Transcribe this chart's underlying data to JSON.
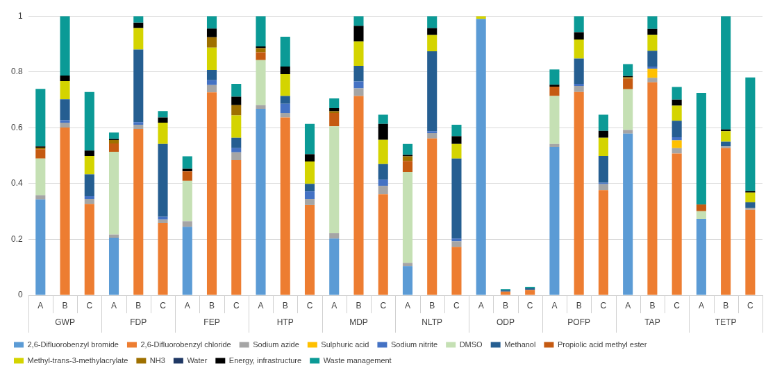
{
  "chart_data": {
    "type": "bar",
    "stacked": true,
    "categories": [
      "A",
      "B",
      "C",
      "A",
      "B",
      "C",
      "A",
      "B",
      "C",
      "A",
      "B",
      "C",
      "A",
      "B",
      "C",
      "A",
      "B",
      "C",
      "A",
      "B",
      "C",
      "A",
      "B",
      "C",
      "A",
      "B",
      "C",
      "A",
      "B",
      "C"
    ],
    "annotations": [
      "GWP",
      "FDP",
      "FEP",
      "HTP",
      "MDP",
      "NLTP",
      "ODP",
      "POFP",
      "TAP",
      "TETP"
    ],
    "ylim": [
      0,
      1
    ],
    "yticks": [
      0,
      0.2,
      0.4,
      0.6,
      0.8,
      1
    ],
    "grid": "y",
    "legend": "bottom",
    "series": [
      {
        "name": "2,6-Difluorobenzyl bromide",
        "color": "#5b9bd5",
        "values": [
          0.343,
          null,
          null,
          0.206,
          null,
          null,
          0.245,
          null,
          null,
          0.668,
          null,
          null,
          0.203,
          null,
          null,
          0.104,
          null,
          null,
          0.99,
          null,
          null,
          0.531,
          null,
          null,
          0.579,
          null,
          null,
          0.273,
          null,
          null
        ]
      },
      {
        "name": "2,6-Difluorobenzyl chloride",
        "color": "#ed7d31",
        "values": [
          null,
          0.601,
          0.327,
          null,
          0.596,
          0.258,
          null,
          0.727,
          0.484,
          null,
          0.637,
          0.323,
          null,
          0.714,
          0.362,
          null,
          0.562,
          0.173,
          null,
          0.013,
          0.019,
          null,
          0.728,
          0.377,
          null,
          0.763,
          0.508,
          null,
          0.527,
          0.306
        ]
      },
      {
        "name": "Sodium azide",
        "color": "#a5a5a5",
        "values": [
          0.015,
          0.017,
          0.018,
          0.011,
          0.015,
          0.013,
          0.02,
          0.026,
          0.028,
          0.013,
          0.016,
          0.022,
          0.02,
          0.027,
          0.03,
          0.012,
          0.019,
          0.02,
          null,
          null,
          null,
          0.011,
          0.022,
          0.021,
          0.013,
          0.016,
          0.019,
          null,
          0.006,
          0.007
        ]
      },
      {
        "name": "Sulphuric acid",
        "color": "#ffc000",
        "values": [
          null,
          null,
          null,
          null,
          null,
          null,
          null,
          null,
          null,
          null,
          null,
          null,
          null,
          null,
          null,
          null,
          null,
          null,
          null,
          null,
          null,
          null,
          null,
          null,
          null,
          0.032,
          0.028,
          null,
          null,
          null
        ]
      },
      {
        "name": "Sodium nitrite",
        "color": "#4472c4",
        "values": [
          null,
          0.009,
          0.01,
          null,
          0.009,
          0.01,
          null,
          0.017,
          0.015,
          null,
          0.033,
          0.027,
          null,
          0.025,
          0.022,
          null,
          0.007,
          0.01,
          null,
          null,
          null,
          null,
          0.007,
          0.005,
          null,
          0.008,
          0.011,
          null,
          null,
          null
        ]
      },
      {
        "name": "DMSO",
        "color": "#c5e0b4",
        "values": [
          0.132,
          null,
          null,
          0.297,
          null,
          null,
          0.145,
          null,
          null,
          0.161,
          null,
          null,
          0.382,
          null,
          null,
          0.326,
          null,
          null,
          null,
          null,
          null,
          0.172,
          null,
          null,
          0.146,
          null,
          null,
          0.028,
          null,
          null
        ]
      },
      {
        "name": "Methanol",
        "color": "#255e91",
        "values": [
          null,
          0.075,
          0.078,
          null,
          0.26,
          0.261,
          null,
          0.037,
          0.037,
          null,
          0.028,
          0.027,
          null,
          0.056,
          0.056,
          null,
          0.286,
          0.287,
          null,
          0.005,
          0.006,
          null,
          0.091,
          0.096,
          null,
          0.057,
          0.059,
          null,
          0.017,
          0.02
        ]
      },
      {
        "name": "Propiolic acid methyl ester",
        "color": "#c55a11",
        "values": [
          0.033,
          null,
          null,
          0.03,
          null,
          null,
          0.034,
          null,
          null,
          0.028,
          null,
          null,
          0.048,
          null,
          null,
          0.039,
          null,
          null,
          null,
          null,
          null,
          0.033,
          null,
          null,
          0.038,
          null,
          null,
          0.024,
          null,
          null
        ]
      },
      {
        "name": "Methyl-trans-3-methylacrylate",
        "color": "#d4d400",
        "values": [
          null,
          0.065,
          0.066,
          null,
          0.077,
          0.076,
          null,
          0.08,
          0.08,
          null,
          0.078,
          0.08,
          null,
          0.087,
          0.087,
          null,
          0.058,
          0.052,
          0.01,
          null,
          null,
          null,
          0.068,
          0.065,
          null,
          0.057,
          0.054,
          null,
          0.038,
          0.035
        ]
      },
      {
        "name": "NH3",
        "color": "#9e7000",
        "values": [
          0.006,
          null,
          null,
          0.012,
          null,
          null,
          null,
          0.037,
          0.037,
          0.015,
          null,
          null,
          0.006,
          null,
          null,
          0.017,
          null,
          null,
          null,
          null,
          null,
          null,
          null,
          null,
          0.005,
          null,
          null,
          null,
          null,
          null
        ]
      },
      {
        "name": "Water",
        "color": "#1f3864",
        "values": [
          null,
          null,
          null,
          null,
          null,
          null,
          null,
          null,
          null,
          null,
          null,
          null,
          null,
          null,
          null,
          null,
          null,
          null,
          null,
          null,
          null,
          null,
          null,
          null,
          null,
          null,
          null,
          null,
          null,
          null
        ]
      },
      {
        "name": "Energy, infrastructure",
        "color": "#000000",
        "values": [
          0.004,
          0.02,
          0.019,
          0.004,
          0.019,
          0.019,
          0.009,
          0.031,
          0.03,
          0.006,
          0.027,
          0.026,
          0.011,
          0.056,
          0.057,
          0.005,
          0.025,
          0.028,
          null,
          null,
          null,
          0.007,
          0.026,
          0.025,
          0.004,
          0.021,
          0.022,
          null,
          0.006,
          0.005
        ]
      },
      {
        "name": "Waste management",
        "color": "#0b9a96",
        "values": [
          0.206,
          0.213,
          0.21,
          0.023,
          0.024,
          0.023,
          0.045,
          0.045,
          0.046,
          0.109,
          0.107,
          0.109,
          0.035,
          0.035,
          0.033,
          0.039,
          0.043,
          0.041,
          null,
          0.004,
          0.005,
          0.055,
          0.058,
          0.058,
          0.043,
          0.046,
          0.045,
          0.4,
          0.406,
          0.407
        ]
      }
    ]
  }
}
